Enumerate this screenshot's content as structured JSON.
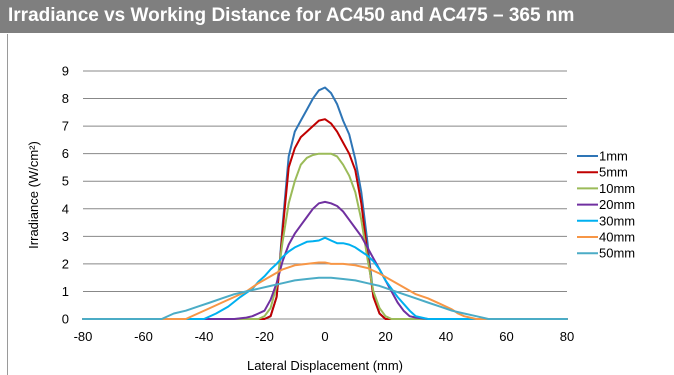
{
  "chart_data": {
    "type": "line",
    "title": "Irradiance vs Working Distance for AC450 and AC475 – 365 nm",
    "xlabel": "Lateral Displacement (mm)",
    "ylabel": "Irradiance (W/cm²)",
    "xlim": [
      -80,
      80
    ],
    "ylim": [
      0,
      9
    ],
    "xticks": [
      -80,
      -60,
      -40,
      -20,
      0,
      20,
      40,
      60,
      80
    ],
    "yticks": [
      0,
      1,
      2,
      3,
      4,
      5,
      6,
      7,
      8,
      9
    ],
    "grid": "horizontal",
    "legend_position": "right",
    "series": [
      {
        "name": "1mm",
        "color": "#2e75b6",
        "x": [
          -80,
          -20,
          -18,
          -16,
          -15,
          -14,
          -12,
          -10,
          -8,
          -6,
          -4,
          -2,
          0,
          2,
          4,
          6,
          8,
          10,
          12,
          14,
          15,
          16,
          18,
          20,
          80
        ],
        "y": [
          0,
          0,
          0.1,
          0.8,
          2.0,
          3.4,
          5.9,
          6.8,
          7.2,
          7.6,
          8.0,
          8.3,
          8.4,
          8.2,
          7.8,
          7.2,
          6.7,
          5.8,
          4.6,
          2.8,
          1.8,
          0.9,
          0.2,
          0,
          0
        ]
      },
      {
        "name": "5mm",
        "color": "#c00000",
        "x": [
          -80,
          -20,
          -18,
          -16,
          -15,
          -14,
          -12,
          -10,
          -8,
          -6,
          -4,
          -2,
          0,
          2,
          4,
          6,
          8,
          10,
          12,
          14,
          15,
          16,
          18,
          20,
          80
        ],
        "y": [
          0,
          0,
          0.1,
          0.8,
          1.9,
          3.2,
          5.5,
          6.2,
          6.6,
          6.8,
          7.0,
          7.2,
          7.25,
          7.1,
          6.8,
          6.4,
          6.0,
          5.4,
          4.2,
          2.4,
          1.6,
          0.8,
          0.2,
          0,
          0
        ]
      },
      {
        "name": "10mm",
        "color": "#9bbb59",
        "x": [
          -80,
          -22,
          -20,
          -18,
          -16,
          -15,
          -14,
          -12,
          -10,
          -8,
          -6,
          -4,
          -2,
          0,
          2,
          4,
          6,
          8,
          10,
          12,
          14,
          16,
          18,
          20,
          22,
          80
        ],
        "y": [
          0,
          0,
          0.1,
          0.4,
          1.2,
          2.0,
          2.8,
          4.2,
          5.0,
          5.6,
          5.85,
          5.95,
          6.0,
          6.0,
          6.0,
          5.9,
          5.6,
          5.2,
          4.6,
          3.6,
          2.2,
          1.0,
          0.4,
          0.1,
          0,
          0
        ]
      },
      {
        "name": "20mm",
        "color": "#7030a0",
        "x": [
          -80,
          -30,
          -26,
          -24,
          -22,
          -20,
          -18,
          -16,
          -14,
          -12,
          -10,
          -8,
          -6,
          -4,
          -2,
          0,
          2,
          4,
          6,
          8,
          10,
          12,
          14,
          16,
          18,
          20,
          22,
          24,
          26,
          28,
          30,
          34,
          80
        ],
        "y": [
          0,
          0,
          0.05,
          0.1,
          0.2,
          0.3,
          0.7,
          1.3,
          2.1,
          2.7,
          3.1,
          3.4,
          3.7,
          4.0,
          4.2,
          4.25,
          4.2,
          4.1,
          3.9,
          3.6,
          3.3,
          3.0,
          2.6,
          2.2,
          1.8,
          1.4,
          1.0,
          0.6,
          0.3,
          0.1,
          0.05,
          0,
          0
        ]
      },
      {
        "name": "30mm",
        "color": "#00b0f0",
        "x": [
          -80,
          -40,
          -36,
          -32,
          -28,
          -24,
          -22,
          -20,
          -18,
          -16,
          -14,
          -12,
          -10,
          -8,
          -6,
          -4,
          -2,
          0,
          2,
          4,
          6,
          8,
          10,
          12,
          14,
          16,
          18,
          20,
          22,
          24,
          26,
          28,
          30,
          34,
          80
        ],
        "y": [
          0,
          0,
          0.2,
          0.45,
          0.8,
          1.1,
          1.35,
          1.55,
          1.8,
          2.0,
          2.25,
          2.45,
          2.6,
          2.7,
          2.8,
          2.82,
          2.85,
          2.95,
          2.85,
          2.75,
          2.75,
          2.7,
          2.6,
          2.45,
          2.3,
          2.1,
          1.8,
          1.4,
          1.1,
          0.8,
          0.55,
          0.3,
          0.1,
          0,
          0
        ]
      },
      {
        "name": "40mm",
        "color": "#f79646",
        "x": [
          -80,
          -46,
          -42,
          -38,
          -34,
          -30,
          -26,
          -22,
          -18,
          -14,
          -10,
          -6,
          -2,
          0,
          2,
          6,
          10,
          14,
          18,
          22,
          26,
          30,
          34,
          38,
          42,
          44,
          46,
          50,
          80
        ],
        "y": [
          0,
          0,
          0.2,
          0.4,
          0.6,
          0.8,
          1.0,
          1.3,
          1.55,
          1.8,
          1.95,
          2.0,
          2.05,
          2.05,
          2.0,
          2.0,
          1.95,
          1.85,
          1.65,
          1.4,
          1.15,
          0.9,
          0.75,
          0.55,
          0.35,
          0.2,
          0.1,
          0,
          0
        ]
      },
      {
        "name": "50mm",
        "color": "#4bacc6",
        "x": [
          -80,
          -54,
          -50,
          -46,
          -42,
          -38,
          -34,
          -30,
          -26,
          -22,
          -18,
          -14,
          -10,
          -6,
          -2,
          0,
          2,
          6,
          10,
          14,
          18,
          22,
          26,
          30,
          34,
          38,
          42,
          46,
          50,
          54,
          80
        ],
        "y": [
          0,
          0,
          0.2,
          0.3,
          0.45,
          0.6,
          0.75,
          0.9,
          1.0,
          1.1,
          1.2,
          1.3,
          1.4,
          1.45,
          1.5,
          1.5,
          1.5,
          1.45,
          1.4,
          1.3,
          1.2,
          1.05,
          0.9,
          0.75,
          0.6,
          0.45,
          0.3,
          0.2,
          0.1,
          0,
          0
        ]
      }
    ]
  }
}
